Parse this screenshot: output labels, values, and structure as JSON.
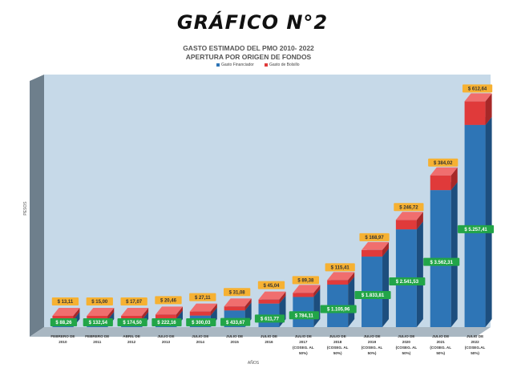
{
  "header": {
    "title": "GRÁFICO N°2",
    "subtitle_1": "GASTO ESTIMADO DEL PMO   2010- 2022",
    "subtitle_2": "APERTURA POR ORIGEN DE FONDOS"
  },
  "colors": {
    "financiador": "#2e75b6",
    "financiador_side": "#1d4e7e",
    "bolsillo": "#e03a3a",
    "bolsillo_top": "#f06e6e",
    "label_green": "#22a548",
    "label_orange": "#f6b132",
    "plot_bg": "#c6d9e8",
    "wall": "#6e7f8c"
  },
  "chart_data": {
    "type": "bar",
    "stacked": true,
    "title": "GASTO ESTIMADO DEL PMO   2010- 2022",
    "subtitle": "APERTURA POR ORIGEN DE FONDOS",
    "xlabel": "AÑOS",
    "ylabel": "PESOS",
    "ylim": [
      0,
      5900
    ],
    "legend_position": "top-center",
    "categories": [
      [
        "FEBRERO DE",
        "2010"
      ],
      [
        "FEBRERO DE",
        "2011"
      ],
      [
        "ABRIL DE",
        "2012"
      ],
      [
        "JULIO DE",
        "2013"
      ],
      [
        "JULIO DE",
        "2014"
      ],
      [
        "JULIO DE",
        "2015"
      ],
      [
        "JULIO DE",
        "2016"
      ],
      [
        "JULIO DE",
        "2017",
        "(COSEG. AL",
        "50%)"
      ],
      [
        "JULIO DE",
        "2018",
        "(COSEG. AL",
        "50%)"
      ],
      [
        "JULIO DE",
        "2019",
        "(COSEG. AL",
        "50%)"
      ],
      [
        "JULIO DE",
        "2020",
        "(COSEG. AL",
        "50%)"
      ],
      [
        "JULIO DE",
        "2021",
        "(COSEG. AL",
        "50%)"
      ],
      [
        "JULIO DE",
        "2022",
        "(COSEG.AL",
        "50%)"
      ]
    ],
    "series": [
      {
        "name": "Gasto Financiador",
        "values": [
          88.26,
          132.54,
          174.5,
          222.16,
          300.03,
          433.67,
          611.77,
          784.11,
          1105.96,
          1833.81,
          2541.53,
          3562.31,
          5257.41
        ],
        "labels": [
          "$ 88,26",
          "$ 132,54",
          "$ 174,50",
          "$ 222,16",
          "$ 300,03",
          "$ 433,67",
          "$ 611,77",
          "$ 784,11",
          "$ 1.105,96",
          "$ 1.833,81",
          "$ 2.541,53",
          "$ 3.562,31",
          "$ 5.257,41"
        ]
      },
      {
        "name": "Gasto de Bolsillo",
        "values": [
          13.11,
          15.0,
          17.07,
          20.46,
          27.11,
          31.08,
          45.04,
          89.38,
          115.41,
          168.97,
          246.72,
          384.02,
          612.64
        ],
        "labels": [
          "$ 13,11",
          "$ 15,00",
          "$ 17,07",
          "$ 20,46",
          "$ 27,11",
          "$ 31,08",
          "$ 45,04",
          "$ 89,38",
          "$ 115,41",
          "$ 168,97",
          "$ 246,72",
          "$ 384,02",
          "$ 612,64"
        ]
      }
    ]
  }
}
